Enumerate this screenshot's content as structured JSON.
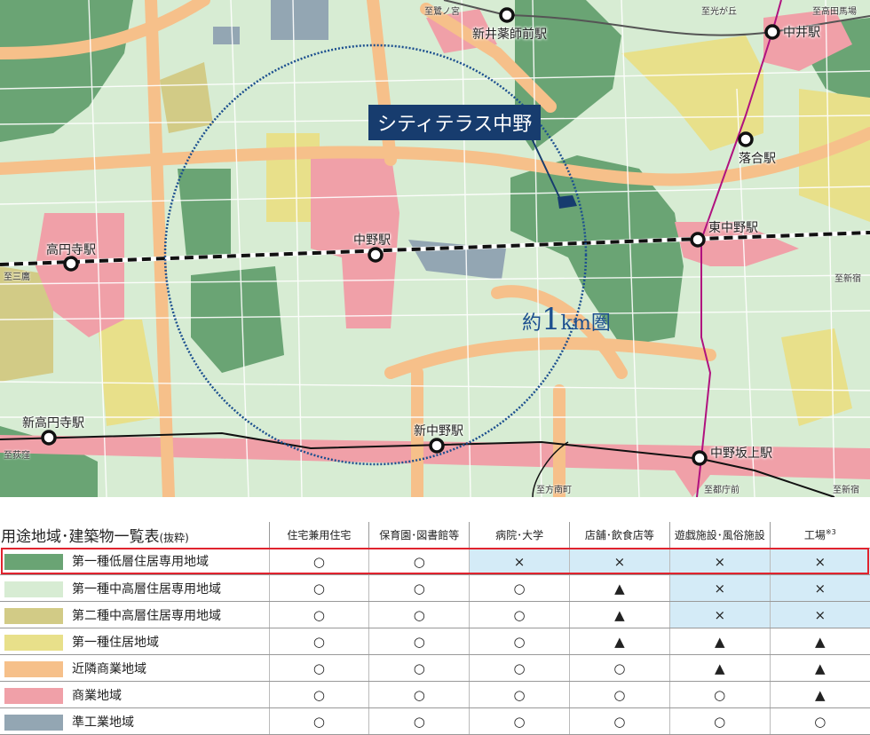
{
  "map": {
    "callout": "シティテラス中野",
    "radius_label_prefix": "約",
    "radius_label_num": "1",
    "radius_label_suffix": "km圏",
    "stations": [
      {
        "name": "新井薬師前駅"
      },
      {
        "name": "中井駅"
      },
      {
        "name": "落合駅"
      },
      {
        "name": "東中野駅"
      },
      {
        "name": "中野駅"
      },
      {
        "name": "高円寺駅"
      },
      {
        "name": "新高円寺駅"
      },
      {
        "name": "新中野駅"
      },
      {
        "name": "中野坂上駅"
      }
    ],
    "directions": [
      "至鷺ノ宮",
      "至光が丘",
      "至高田馬場",
      "至三鷹",
      "至新宿",
      "至荻窪",
      "至方南町",
      "至都庁前",
      "至新宿"
    ]
  },
  "table": {
    "title": "用途地域･建築物一覧表",
    "title_note": "(抜粋)",
    "columns": [
      "住宅兼用住宅",
      "保育園･図書館等",
      "病院･大学",
      "店舗･飲食店等",
      "遊戯施設･風俗施設",
      "工場"
    ],
    "factory_note": "※3",
    "rows": [
      {
        "name": "第一種低層住居専用地域",
        "color": "#6aa474",
        "cells": [
          "○",
          "○",
          "×",
          "×",
          "×",
          "×"
        ],
        "blue": [
          2,
          3,
          4,
          5
        ],
        "highlighted": true
      },
      {
        "name": "第一種中高層住居専用地域",
        "color": "#d7ecd3",
        "cells": [
          "○",
          "○",
          "○",
          "▲",
          "×",
          "×"
        ],
        "blue": [
          4,
          5
        ]
      },
      {
        "name": "第二種中高層住居専用地域",
        "color": "#d2cb86",
        "cells": [
          "○",
          "○",
          "○",
          "▲",
          "×",
          "×"
        ],
        "blue": [
          4,
          5
        ]
      },
      {
        "name": "第一種住居地域",
        "color": "#e8e08a",
        "cells": [
          "○",
          "○",
          "○",
          "▲",
          "▲",
          "▲"
        ],
        "blue": []
      },
      {
        "name": "近隣商業地域",
        "color": "#f6c08a",
        "cells": [
          "○",
          "○",
          "○",
          "○",
          "▲",
          "▲"
        ],
        "blue": []
      },
      {
        "name": "商業地域",
        "color": "#f0a0a8",
        "cells": [
          "○",
          "○",
          "○",
          "○",
          "○",
          "▲"
        ],
        "blue": []
      },
      {
        "name": "準工業地域",
        "color": "#93a6b3",
        "cells": [
          "○",
          "○",
          "○",
          "○",
          "○",
          "○"
        ],
        "blue": []
      }
    ]
  }
}
